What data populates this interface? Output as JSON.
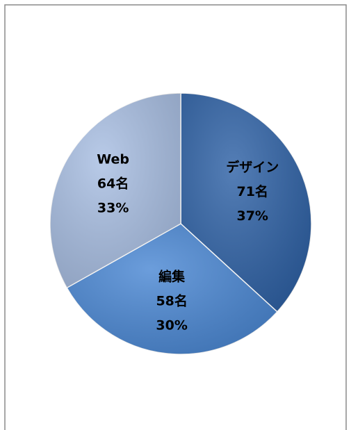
{
  "chart_data": {
    "type": "pie",
    "categories": [
      "デザイン",
      "編集",
      "Web"
    ],
    "values": [
      71,
      58,
      64
    ],
    "value_labels": [
      "71名",
      "58名",
      "64名"
    ],
    "percents": [
      37,
      30,
      33
    ],
    "percent_labels": [
      "37%",
      "30%",
      "33%"
    ],
    "colors": [
      "#2f62a6",
      "#4b88d4",
      "#a9bfe3"
    ]
  }
}
